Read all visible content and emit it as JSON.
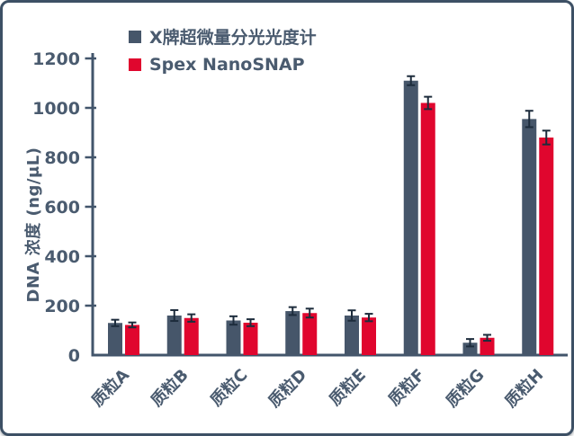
{
  "colors": {
    "background": "#ffffff",
    "frame_border": "#3d5065",
    "axis": "#42556b",
    "text": "#4a5b6f",
    "error_bar": "#1d2c3c",
    "series_gray": "#46566a",
    "series_red": "#e0062e"
  },
  "chart_data": {
    "type": "bar",
    "title": "",
    "categories": [
      "质粒A",
      "质粒B",
      "质粒C",
      "质粒D",
      "质粒E",
      "质粒F",
      "质粒G",
      "质粒H"
    ],
    "series": [
      {
        "name": "X牌超微量分光光度计",
        "color": "#46566a",
        "values": [
          130,
          160,
          140,
          178,
          160,
          1110,
          50,
          955
        ],
        "errors": [
          13,
          22,
          17,
          16,
          21,
          18,
          15,
          33
        ]
      },
      {
        "name": "Spex NanoSNAP",
        "color": "#e0062e",
        "values": [
          122,
          150,
          131,
          170,
          152,
          1020,
          70,
          880
        ],
        "errors": [
          10,
          15,
          14,
          18,
          15,
          25,
          12,
          28
        ]
      }
    ],
    "xlabel": "",
    "ylabel": "DNA 浓度 (ng/μL)",
    "ylim": [
      0,
      1200
    ],
    "yticks": [
      0,
      200,
      400,
      600,
      800,
      1000,
      1200
    ],
    "grid": false,
    "legend_position": "upper-left-inside",
    "error_bars": true
  }
}
